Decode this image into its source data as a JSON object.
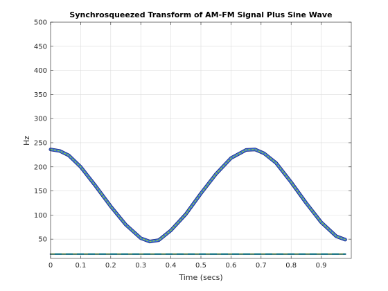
{
  "chart_data": {
    "type": "line",
    "title": "Synchrosqueezed Transform of AM-FM Signal Plus Sine Wave",
    "xlabel": "Time (secs)",
    "ylabel": "Hz",
    "xlim": [
      0,
      1
    ],
    "ylim": [
      10,
      500
    ],
    "x_ticks": [
      "0",
      "0.1",
      "0.2",
      "0.3",
      "0.4",
      "0.5",
      "0.6",
      "0.7",
      "0.8",
      "0.9"
    ],
    "x_tick_values": [
      0,
      0.1,
      0.2,
      0.3,
      0.4,
      0.5,
      0.6,
      0.7,
      0.8,
      0.9
    ],
    "y_ticks": [
      "50",
      "100",
      "150",
      "200",
      "250",
      "300",
      "350",
      "400",
      "450",
      "500"
    ],
    "y_tick_values": [
      50,
      100,
      150,
      200,
      250,
      300,
      350,
      400,
      450,
      500
    ],
    "grid": true,
    "series": [
      {
        "color": "#3b6fd4",
        "highlight_color": "#8fd23c",
        "x": [
          0,
          0.03,
          0.06,
          0.1,
          0.15,
          0.2,
          0.25,
          0.3,
          0.33,
          0.36,
          0.4,
          0.45,
          0.5,
          0.55,
          0.6,
          0.65,
          0.68,
          0.71,
          0.75,
          0.8,
          0.85,
          0.9,
          0.95,
          0.98
        ],
        "values": [
          236,
          233,
          224,
          200,
          160,
          118,
          80,
          52,
          45,
          48,
          68,
          102,
          145,
          185,
          218,
          235,
          236,
          228,
          208,
          168,
          125,
          85,
          56,
          49
        ]
      },
      {
        "color": "#2a9d8f",
        "highlight_color": "#e8c62e",
        "x": [
          0,
          0.25,
          0.5,
          0.75,
          0.98
        ],
        "values": [
          19,
          19,
          19,
          19,
          19
        ]
      }
    ]
  }
}
